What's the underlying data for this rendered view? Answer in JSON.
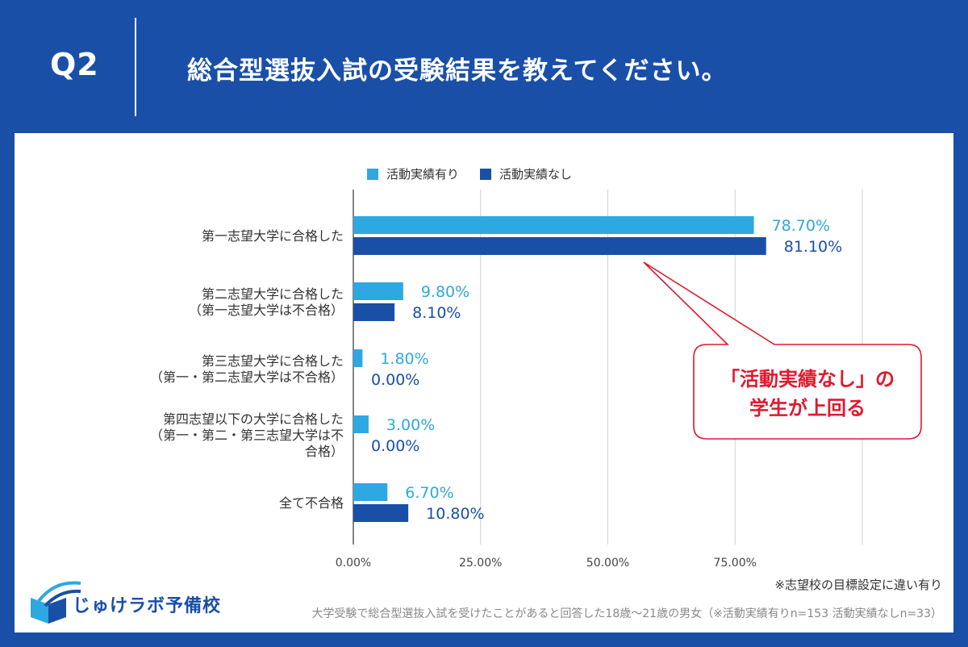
{
  "header": {
    "q_label": "Q2",
    "question": "総合型選抜入試の受験結果を教えてください。"
  },
  "colors": {
    "background": "#1a4fa8",
    "series_light": "#2ea8e0",
    "series_dark": "#1a4fa8",
    "callout": "#e0182d"
  },
  "callout": {
    "line1": "「活動実績なし」の",
    "line2": "学生が上回る"
  },
  "note": "※志望校の目標設定に違い有り",
  "footer": "大学受験で総合型選抜入試を受けたことがあると回答した18歳～21歳の男女（※活動実績有りn=153 活動実績なしn=33）",
  "logo": {
    "text": "じゅけラボ予備校",
    "icon": "open-book-logo-icon"
  },
  "chart_data": {
    "type": "bar",
    "orientation": "horizontal",
    "categories": [
      [
        "第一志望大学に合格した"
      ],
      [
        "第二志望大学に合格した",
        "（第一志望大学は不合格）"
      ],
      [
        "第三志望大学に合格した",
        "（第一・第二志望大学は不合格）"
      ],
      [
        "第四志望以下の大学に合格した",
        "（第一・第二・第三志望大学は不",
        "合格）"
      ],
      [
        "全て不合格"
      ]
    ],
    "series": [
      {
        "name": "活動実績有り",
        "values": [
          78.7,
          9.8,
          1.8,
          3.0,
          6.7
        ],
        "labels": [
          "78.70%",
          "9.80%",
          "1.80%",
          "3.00%",
          "6.70%"
        ],
        "color": "#2ea8e0"
      },
      {
        "name": "活動実績なし",
        "values": [
          81.1,
          8.1,
          0.0,
          0.0,
          10.8
        ],
        "labels": [
          "81.10%",
          "8.10%",
          "0.00%",
          "0.00%",
          "10.80%"
        ],
        "color": "#1a4fa8"
      }
    ],
    "x_ticks": [
      0,
      25,
      50,
      75
    ],
    "x_tick_labels": [
      "0.00%",
      "25.00%",
      "50.00%",
      "75.00%"
    ],
    "xlim": [
      0,
      100
    ],
    "legend": "top",
    "grid": true
  }
}
